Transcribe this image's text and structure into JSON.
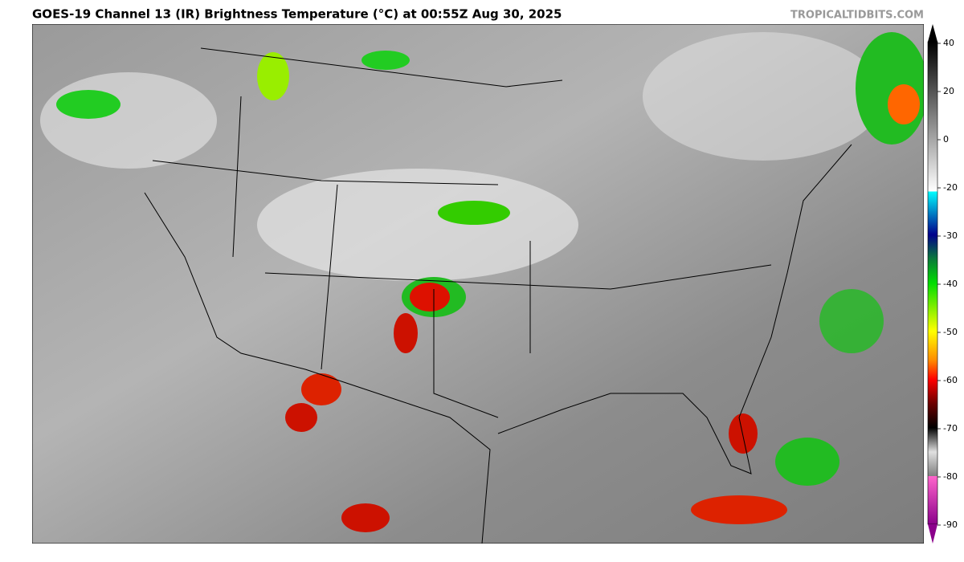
{
  "header": {
    "title": "GOES-19 Channel 13 (IR) Brightness Temperature (°C) at 00:55Z Aug 30, 2025",
    "credit": "TROPICALTIDBITS.COM"
  },
  "colorbar": {
    "ticks": [
      40,
      20,
      0,
      -20,
      -30,
      -40,
      -50,
      -60,
      -70,
      -80,
      -90
    ]
  }
}
